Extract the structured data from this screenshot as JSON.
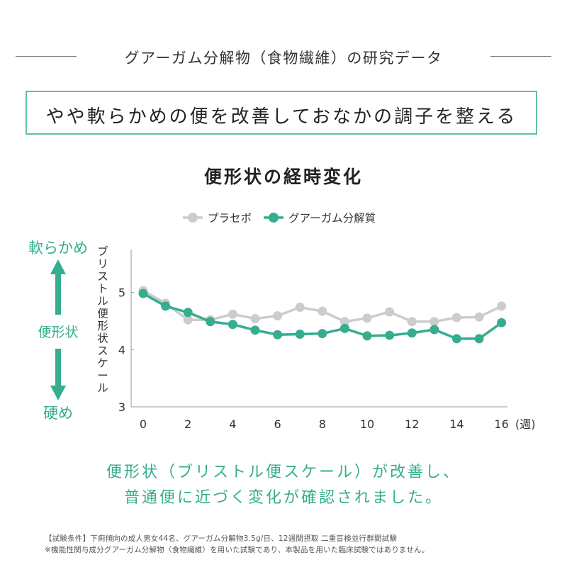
{
  "header": {
    "title": "グアーガム分解物（食物繊維）の研究データ"
  },
  "headline": "やや軟らかめの便を改善しておなかの調子を整える",
  "conclusion": {
    "line1": "便形状（ブリストル便スケール）が改善し、",
    "line2": "普通便に近づく変化が確認されました。"
  },
  "footnotes": {
    "line1": "【試験条件】下痢傾向の成人男女44名、グアーガム分解物3.5g/日、12週間摂取 二重盲検並行群間試験",
    "line2": "※機能性関与成分グアーガム分解物（食物繊維）を用いた試験であり、本製品を用いた臨床試験ではありません。"
  },
  "scale_indicator": {
    "top": "軟らかめ",
    "middle": "便形状",
    "bottom": "硬め",
    "color": "#36ad8e"
  },
  "chart_data": {
    "type": "line",
    "title": "便形状の経時変化",
    "ylabel": "ブリストル便形状スケール",
    "xlabel": "",
    "x_unit": "(週)",
    "x": [
      0,
      1,
      2,
      3,
      4,
      5,
      6,
      7,
      8,
      9,
      10,
      11,
      12,
      13,
      14,
      15,
      16
    ],
    "x_ticks": [
      0,
      2,
      4,
      6,
      8,
      10,
      12,
      14,
      16
    ],
    "ylim": [
      3,
      5.75
    ],
    "y_ticks": [
      3,
      4,
      5
    ],
    "legend_position": "top-center",
    "grid": false,
    "series": [
      {
        "name": "プラセボ",
        "color": "#cccccc",
        "values": [
          5.03,
          4.81,
          4.52,
          4.52,
          4.62,
          4.54,
          4.59,
          4.74,
          4.67,
          4.49,
          4.55,
          4.66,
          4.49,
          4.49,
          4.56,
          4.57,
          4.76
        ]
      },
      {
        "name": "グアーガム分解質",
        "color": "#36ad8e",
        "values": [
          4.98,
          4.76,
          4.65,
          4.49,
          4.44,
          4.34,
          4.26,
          4.27,
          4.28,
          4.37,
          4.24,
          4.25,
          4.29,
          4.35,
          4.19,
          4.19,
          4.47
        ]
      }
    ]
  }
}
